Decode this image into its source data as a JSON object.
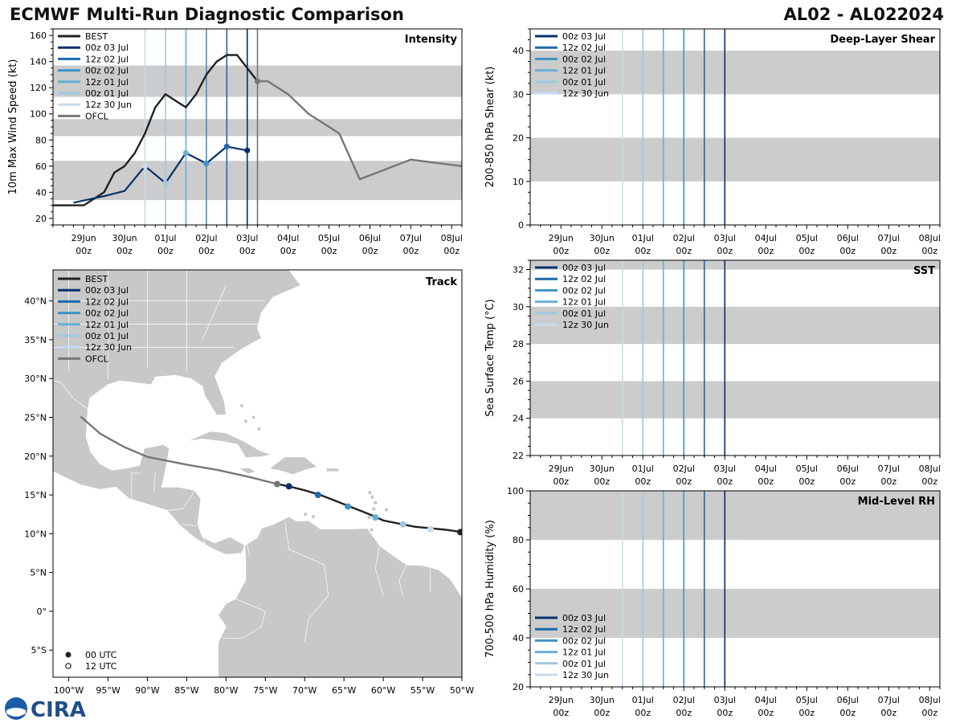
{
  "header": {
    "title_left": "ECMWF Multi-Run Diagnostic Comparison",
    "title_right": "AL02 - AL022024"
  },
  "colors": {
    "best": "#222222",
    "ofcl": "#777777",
    "band": "#cccccc",
    "land": "#c8c8c8",
    "runs": [
      "#08306b",
      "#1c6aad",
      "#4292c6",
      "#6baed6",
      "#9ecae1",
      "#c6dbef"
    ]
  },
  "legends": {
    "runs": [
      "00z 03 Jul",
      "12z 02 Jul",
      "00z 02 Jul",
      "12z 01 Jul",
      "00z 01 Jul",
      "12z 30 Jun"
    ],
    "best": "BEST",
    "ofcl": "OFCL",
    "markers": [
      "00 UTC",
      "12 UTC"
    ]
  },
  "time_axis": {
    "labels": [
      "29Jun",
      "30Jun",
      "01Jul",
      "02Jul",
      "03Jul",
      "04Jul",
      "05Jul",
      "06Jul",
      "07Jul",
      "08Jul"
    ],
    "sublabel": "00z"
  },
  "chart_data": [
    {
      "id": "intensity",
      "type": "line",
      "title": "Intensity",
      "ylabel": "10m Max Wind Speed (kt)",
      "ylim": [
        15,
        165
      ],
      "yticks": [
        20,
        40,
        60,
        80,
        100,
        120,
        140,
        160
      ],
      "bands": [
        [
          34,
          64
        ],
        [
          83,
          96
        ],
        [
          113,
          137
        ]
      ],
      "run_lines_days": [
        4.0,
        3.5,
        3.0,
        2.5,
        2.0,
        1.5
      ],
      "extra_vline_day": 4.25,
      "series": [
        {
          "name": "BEST",
          "x": [
            -0.75,
            -0.5,
            -0.25,
            0,
            0.25,
            0.5,
            0.75,
            1.0,
            1.25,
            1.5,
            1.75,
            2.0,
            2.25,
            2.5,
            2.75,
            3.0,
            3.25,
            3.5,
            3.75,
            4.0,
            4.25
          ],
          "y": [
            30,
            30,
            30,
            30,
            35,
            40,
            55,
            60,
            70,
            85,
            105,
            115,
            110,
            105,
            115,
            130,
            140,
            145,
            145,
            135,
            125
          ]
        },
        {
          "name": "00z 03 Jul",
          "x": [
            -0.25,
            0.5,
            1.0,
            1.5,
            2.0,
            2.5,
            3.0,
            3.5,
            4.0
          ],
          "y": [
            32,
            37,
            41,
            60,
            47,
            70,
            62,
            75,
            72
          ]
        },
        {
          "name": "OFCL",
          "x": [
            4.25,
            4.5,
            5.0,
            5.5,
            6.0,
            6.25,
            6.75,
            8.0,
            9.25
          ],
          "y": [
            125,
            125,
            115,
            100,
            90,
            85,
            50,
            65,
            60
          ]
        }
      ],
      "run_points": [
        {
          "run": 5,
          "x": 1.5,
          "y": 60
        },
        {
          "run": 4,
          "x": 2.0,
          "y": 47
        },
        {
          "run": 3,
          "x": 2.5,
          "y": 70
        },
        {
          "run": 2,
          "x": 3.0,
          "y": 62
        },
        {
          "run": 1,
          "x": 3.5,
          "y": 75
        },
        {
          "run": 0,
          "x": 4.0,
          "y": 72
        }
      ]
    },
    {
      "id": "shear",
      "type": "line",
      "title": "Deep-Layer Shear",
      "ylabel": "200-850 hPa Shear (kt)",
      "ylim": [
        0,
        45
      ],
      "yticks": [
        0,
        10,
        20,
        30,
        40
      ],
      "bands": [
        [
          10,
          20
        ],
        [
          30,
          40
        ]
      ],
      "run_lines_days": [
        4.0,
        3.5,
        3.0,
        2.5,
        2.0,
        1.5
      ],
      "series": []
    },
    {
      "id": "sst",
      "type": "line",
      "title": "SST",
      "ylabel": "Sea Surface Temp (°C)",
      "ylim": [
        22,
        32.5
      ],
      "yticks": [
        22,
        24,
        26,
        28,
        30,
        32
      ],
      "bands": [
        [
          24,
          26
        ],
        [
          28,
          30
        ],
        [
          32,
          32.5
        ]
      ],
      "run_lines_days": [
        4.0,
        3.5,
        3.0,
        2.5,
        2.0,
        1.5
      ],
      "series": []
    },
    {
      "id": "rh",
      "type": "line",
      "title": "Mid-Level RH",
      "ylabel": "700-500 hPa Humidity (%)",
      "ylim": [
        20,
        100
      ],
      "yticks": [
        20,
        40,
        60,
        80,
        100
      ],
      "bands": [
        [
          40,
          60
        ],
        [
          80,
          100
        ]
      ],
      "run_lines_days": [
        4.0,
        3.5,
        3.0,
        2.5,
        2.0,
        1.5
      ],
      "series": []
    },
    {
      "id": "track",
      "type": "scatter",
      "title": "Track",
      "xlim": [
        -102,
        -50
      ],
      "ylim": [
        -8.5,
        44
      ],
      "xticks": [
        -100,
        -95,
        -90,
        -85,
        -80,
        -75,
        -70,
        -65,
        -60,
        -55,
        -50
      ],
      "xtick_labels": [
        "100°W",
        "95°W",
        "90°W",
        "85°W",
        "80°W",
        "75°W",
        "70°W",
        "65°W",
        "60°W",
        "55°W",
        "50°W"
      ],
      "yticks": [
        -5,
        0,
        5,
        10,
        15,
        20,
        25,
        30,
        35,
        40
      ],
      "ytick_labels": [
        "5°S",
        "0°",
        "5°N",
        "10°N",
        "15°N",
        "20°N",
        "25°N",
        "30°N",
        "35°N",
        "40°N"
      ],
      "best_track": {
        "lon": [
          -50,
          -52,
          -54,
          -56,
          -58,
          -60,
          -61.5,
          -63,
          -64.5,
          -66,
          -68,
          -70,
          -72,
          -73.5
        ],
        "lat": [
          10.2,
          10.5,
          10.7,
          10.9,
          11.3,
          11.7,
          12.4,
          13,
          13.6,
          14.2,
          15,
          15.6,
          16.1,
          16.4
        ]
      },
      "ofcl_track": {
        "lon": [
          -73.5,
          -77,
          -81,
          -85,
          -90,
          -93,
          -96,
          -98.5
        ],
        "lat": [
          16.4,
          17.3,
          18.2,
          18.9,
          19.9,
          21.2,
          22.9,
          25.1
        ]
      },
      "run_points": [
        {
          "run": 0,
          "lon": -72,
          "lat": 16.1
        },
        {
          "run": 1,
          "lon": -68.3,
          "lat": 15.0
        },
        {
          "run": 2,
          "lon": -64.5,
          "lat": 13.5
        },
        {
          "run": 3,
          "lon": -61,
          "lat": 12.1
        },
        {
          "run": 4,
          "lon": -57.5,
          "lat": 11.2
        },
        {
          "run": 5,
          "lon": -54,
          "lat": 10.6
        }
      ],
      "best_start": {
        "lon": -50.2,
        "lat": 10.2
      },
      "ofcl_start": {
        "lon": -73.5,
        "lat": 16.4
      }
    }
  ]
}
